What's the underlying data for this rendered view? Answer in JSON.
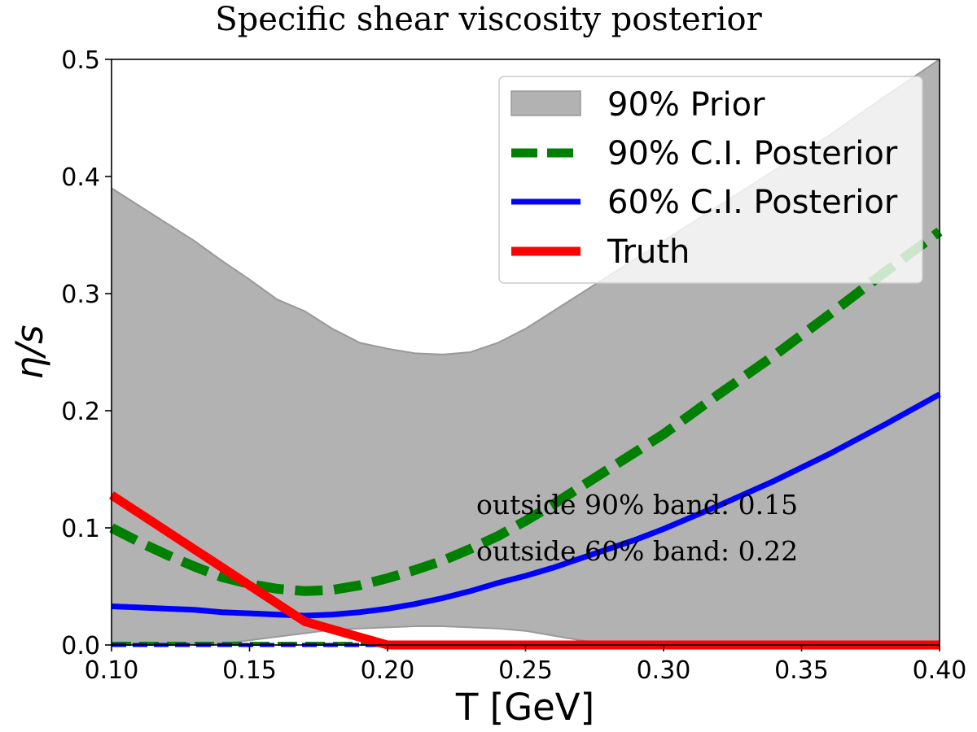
{
  "chart_data": {
    "type": "line",
    "title": "Specific shear viscosity posterior",
    "xlabel": "T [GeV]",
    "ylabel": "η/s",
    "xlim": [
      0.1,
      0.4
    ],
    "ylim": [
      0.0,
      0.5
    ],
    "xticks": [
      "0.10",
      "0.15",
      "0.20",
      "0.25",
      "0.30",
      "0.35",
      "0.40"
    ],
    "yticks": [
      "0.0",
      "0.1",
      "0.2",
      "0.3",
      "0.4",
      "0.5"
    ],
    "grid": false,
    "legend_position": "top-right",
    "prior_band": {
      "name": "90% Prior",
      "color": "#b2b2b2",
      "x": [
        0.1,
        0.11,
        0.12,
        0.13,
        0.14,
        0.15,
        0.16,
        0.17,
        0.18,
        0.19,
        0.2,
        0.21,
        0.22,
        0.23,
        0.24,
        0.25,
        0.26,
        0.27,
        0.28,
        0.29,
        0.3,
        0.32,
        0.34,
        0.36,
        0.38,
        0.4
      ],
      "upper": [
        0.39,
        0.375,
        0.36,
        0.345,
        0.328,
        0.312,
        0.295,
        0.285,
        0.27,
        0.258,
        0.253,
        0.249,
        0.248,
        0.25,
        0.258,
        0.27,
        0.285,
        0.3,
        0.315,
        0.33,
        0.345,
        0.375,
        0.405,
        0.435,
        0.468,
        0.5
      ],
      "lower": [
        0.001,
        0.001,
        0.001,
        0.001,
        0.001,
        0.004,
        0.007,
        0.01,
        0.013,
        0.014,
        0.015,
        0.016,
        0.016,
        0.015,
        0.014,
        0.012,
        0.008,
        0.004,
        0.001,
        0.001,
        0.001,
        0.001,
        0.001,
        0.001,
        0.001,
        0.001
      ]
    },
    "series": [
      {
        "name": "90% C.I. Posterior",
        "color": "#008000",
        "style": "dashed",
        "x": [
          0.1,
          0.11,
          0.12,
          0.13,
          0.14,
          0.15,
          0.16,
          0.17,
          0.18,
          0.19,
          0.2,
          0.21,
          0.22,
          0.23,
          0.24,
          0.25,
          0.26,
          0.27,
          0.28,
          0.29,
          0.3,
          0.32,
          0.34,
          0.36,
          0.38,
          0.4
        ],
        "upper": [
          0.1,
          0.088,
          0.077,
          0.067,
          0.058,
          0.052,
          0.048,
          0.046,
          0.047,
          0.051,
          0.057,
          0.064,
          0.072,
          0.082,
          0.093,
          0.106,
          0.12,
          0.135,
          0.15,
          0.165,
          0.18,
          0.214,
          0.247,
          0.282,
          0.318,
          0.353
        ],
        "lower": [
          0.001,
          0.001,
          0.001,
          0.001,
          0.001,
          0.001,
          0.001,
          0.001,
          0.001,
          0.001,
          0.001,
          0.001,
          0.001,
          0.001,
          0.001,
          0.001,
          0.001,
          0.001,
          0.001,
          0.001,
          0.001,
          0.001,
          0.001,
          0.001,
          0.001,
          0.001
        ]
      },
      {
        "name": "60% C.I. Posterior",
        "color": "#0000ff",
        "style": "solid",
        "x": [
          0.1,
          0.11,
          0.12,
          0.13,
          0.14,
          0.15,
          0.16,
          0.17,
          0.18,
          0.19,
          0.2,
          0.21,
          0.22,
          0.23,
          0.24,
          0.25,
          0.26,
          0.27,
          0.28,
          0.29,
          0.3,
          0.32,
          0.34,
          0.36,
          0.38,
          0.4
        ],
        "upper": [
          0.033,
          0.032,
          0.031,
          0.03,
          0.028,
          0.027,
          0.026,
          0.025,
          0.026,
          0.028,
          0.031,
          0.035,
          0.04,
          0.046,
          0.053,
          0.059,
          0.066,
          0.074,
          0.082,
          0.09,
          0.099,
          0.119,
          0.14,
          0.163,
          0.188,
          0.214
        ],
        "lower": [
          0.0,
          0.0,
          0.0,
          0.0,
          0.0,
          0.0,
          0.0,
          0.0,
          0.0,
          0.0,
          0.0,
          0.0,
          0.0,
          0.0,
          0.0,
          0.0,
          0.0,
          0.0,
          0.0,
          0.0,
          0.0,
          0.0,
          0.0,
          0.0,
          0.0,
          0.0
        ]
      },
      {
        "name": "Truth",
        "color": "#ff0000",
        "style": "solid",
        "x": [
          0.1,
          0.17,
          0.2,
          0.4
        ],
        "y": [
          0.128,
          0.02,
          0.0,
          0.0
        ]
      }
    ],
    "annotations": [
      "outside 90% band: 0.15",
      "outside 60% band: 0.22"
    ]
  }
}
